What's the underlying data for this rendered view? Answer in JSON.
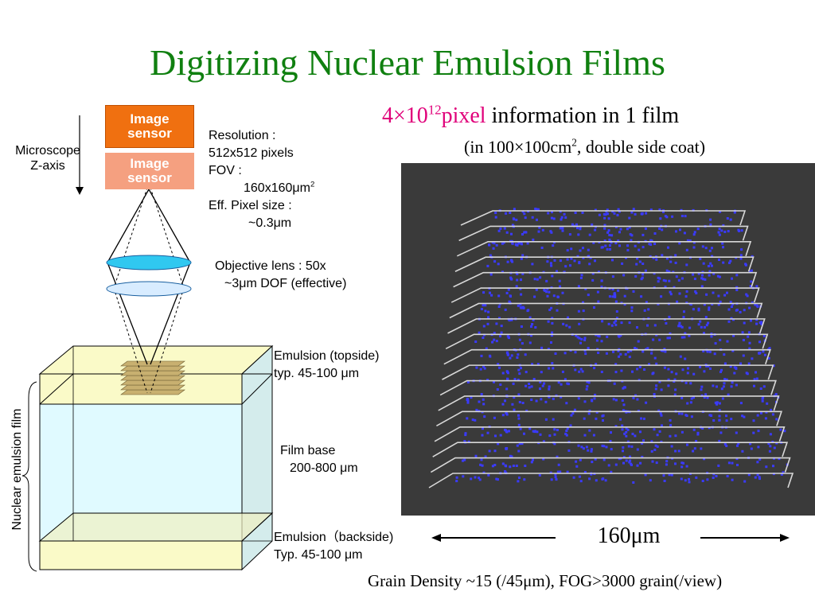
{
  "title": "Digitizing Nuclear Emulsion Films",
  "info": {
    "count_prefix": "4×10",
    "count_exp": "12",
    "count_unit": "pixel",
    "rest": " information in 1 film",
    "sub_a": "(in 100×100cm",
    "sub_exp": "2",
    "sub_b": ", double side coat)"
  },
  "microscope": {
    "axis_line1": "Microscope",
    "axis_line2": "Z-axis",
    "sensor1_line1": "Image",
    "sensor1_line2": "sensor",
    "sensor2_line1": "Image",
    "sensor2_line2": "sensor",
    "resolution_label": "Resolution :",
    "resolution_value": "512x512 pixels",
    "fov_label": "FOV  :",
    "fov_value": "160x160μm",
    "fov_exp": "2",
    "pixel_label": "Eff. Pixel size  :",
    "pixel_value": "~0.3μm",
    "objective_line1": "Objective lens : 50x",
    "objective_line2": "~3μm DOF (effective)"
  },
  "film": {
    "side_label": "Nuclear emulsion film",
    "top_line1": "Emulsion (topside)",
    "top_line2": "typ. 45-100 μm",
    "base_line1": "Film base",
    "base_line2": "200-800 μm",
    "back_line1": "Emulsion（backside)",
    "back_line2": "Typ. 45-100 μm"
  },
  "scale_label": "160μm",
  "footer": "Grain Density ~15 (/45μm),  FOG>3000 grain(/view)",
  "colors": {
    "title": "#108010",
    "highlight": "#e0007a",
    "sensor": "#f07010",
    "sensor_faded": "#f5a080",
    "lens": "#30c8f0",
    "lens_faded": "#d8ecff",
    "emulsion": "#fafac8",
    "film_base": "#e0faff",
    "grain": "#3a3aff",
    "image_bg": "#3a3a3a"
  }
}
